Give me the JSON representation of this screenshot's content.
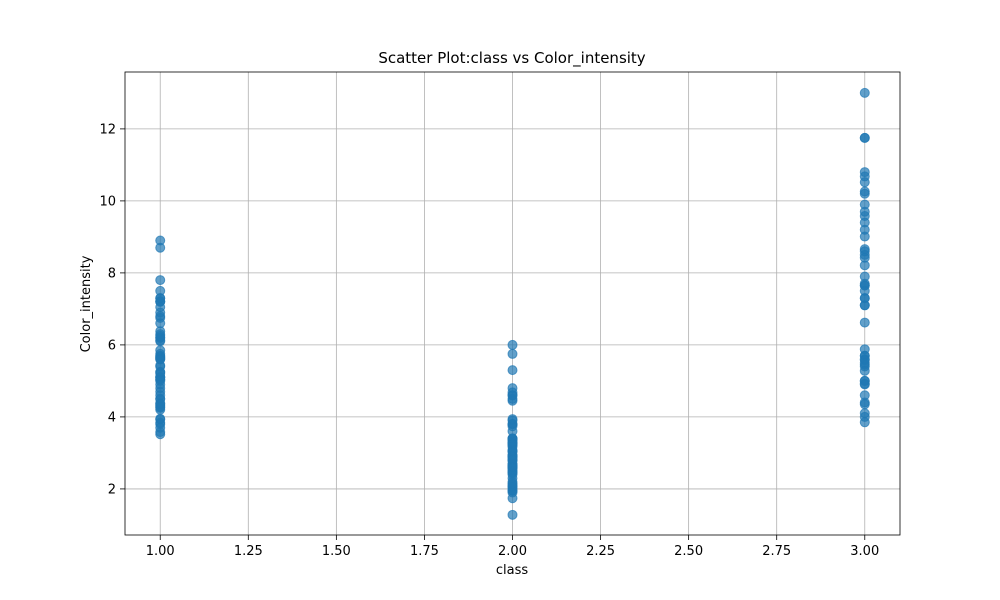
{
  "chart_data": {
    "type": "scatter",
    "title": "Scatter Plot:class vs Color_intensity",
    "xlabel": "class",
    "ylabel": "Color_intensity",
    "xlim": [
      0.9,
      3.1
    ],
    "ylim": [
      0.72,
      13.58
    ],
    "xticks": [
      "1.00",
      "1.25",
      "1.50",
      "1.75",
      "2.00",
      "2.25",
      "2.50",
      "2.75",
      "3.00"
    ],
    "yticks": [
      "2",
      "4",
      "6",
      "8",
      "10",
      "12"
    ],
    "grid": true,
    "marker_color": "#1f77b4",
    "marker_alpha": 0.7,
    "series": [
      {
        "x": [
          1,
          1,
          1,
          1,
          1,
          1,
          1,
          1,
          1,
          1,
          1,
          1,
          1,
          1,
          1,
          1,
          1,
          1,
          1,
          1,
          1,
          1,
          1,
          1,
          1,
          1,
          1,
          1,
          1,
          1,
          1,
          1,
          1,
          1,
          1,
          1,
          1,
          1,
          1,
          1,
          1,
          1,
          1,
          1,
          1,
          1,
          1,
          1,
          1,
          1,
          1,
          1,
          1,
          1,
          1,
          1,
          1,
          1,
          1,
          2,
          2,
          2,
          2,
          2,
          2,
          2,
          2,
          2,
          2,
          2,
          2,
          2,
          2,
          2,
          2,
          2,
          2,
          2,
          2,
          2,
          2,
          2,
          2,
          2,
          2,
          2,
          2,
          2,
          2,
          2,
          2,
          2,
          2,
          2,
          2,
          2,
          2,
          2,
          2,
          2,
          2,
          2,
          2,
          2,
          2,
          2,
          2,
          2,
          2,
          2,
          2,
          2,
          2,
          2,
          2,
          2,
          2,
          2,
          2,
          2,
          2,
          2,
          2,
          2,
          2,
          2,
          3,
          3,
          3,
          3,
          3,
          3,
          3,
          3,
          3,
          3,
          3,
          3,
          3,
          3,
          3,
          3,
          3,
          3,
          3,
          3,
          3,
          3,
          3,
          3,
          3,
          3,
          3,
          3,
          3,
          3,
          3,
          3,
          3,
          3,
          3,
          3,
          3,
          3,
          3,
          3,
          3,
          3,
          3,
          3,
          3,
          3,
          3,
          3
        ],
        "y": [
          5.64,
          4.38,
          5.68,
          7.8,
          4.32,
          6.75,
          5.25,
          5.05,
          5.2,
          7.22,
          5.75,
          5.0,
          5.6,
          7.5,
          7.3,
          6.2,
          6.6,
          8.7,
          5.1,
          5.65,
          4.5,
          3.8,
          3.93,
          3.52,
          3.58,
          4.8,
          3.95,
          4.5,
          4.7,
          5.7,
          6.9,
          3.84,
          5.4,
          4.2,
          5.1,
          4.6,
          4.25,
          3.7,
          5.1,
          6.13,
          7.2,
          4.28,
          5.43,
          4.36,
          5.04,
          5.24,
          4.9,
          6.1,
          6.2,
          8.9,
          7.2,
          5.6,
          7.05,
          6.3,
          5.85,
          6.25,
          6.8,
          7.3,
          6.38,
          1.95,
          3.27,
          5.75,
          3.8,
          4.45,
          2.95,
          4.6,
          5.3,
          4.68,
          3.17,
          2.85,
          3.05,
          3.38,
          3.74,
          3.35,
          3.21,
          3.8,
          4.6,
          2.65,
          3.4,
          2.57,
          2.5,
          3.9,
          2.2,
          4.8,
          3.05,
          2.62,
          2.45,
          2.6,
          2.8,
          1.74,
          2.4,
          3.6,
          3.05,
          2.15,
          3.25,
          2.6,
          2.5,
          2.9,
          4.5,
          2.3,
          3.3,
          2.45,
          2.8,
          2.06,
          2.94,
          2.7,
          3.4,
          3.3,
          2.7,
          2.65,
          2.9,
          2.0,
          3.8,
          3.08,
          2.9,
          1.9,
          1.95,
          2.06,
          3.4,
          1.28,
          3.25,
          6.0,
          2.8,
          3.94,
          2.12,
          2.6,
          4.1,
          5.4,
          5.7,
          5.0,
          5.45,
          7.1,
          3.85,
          5.0,
          5.7,
          4.92,
          4.6,
          5.6,
          4.35,
          4.4,
          8.21,
          4.0,
          4.9,
          7.65,
          7.9,
          9.01,
          7.5,
          13.0,
          11.75,
          7.65,
          5.88,
          5.58,
          5.28,
          9.58,
          6.62,
          10.68,
          10.26,
          8.66,
          8.5,
          5.5,
          9.9,
          9.7,
          7.3,
          11.75,
          7.1,
          10.8,
          9.4,
          8.42,
          8.6,
          10.2,
          7.7,
          7.3,
          10.52,
          9.2
        ]
      }
    ]
  }
}
